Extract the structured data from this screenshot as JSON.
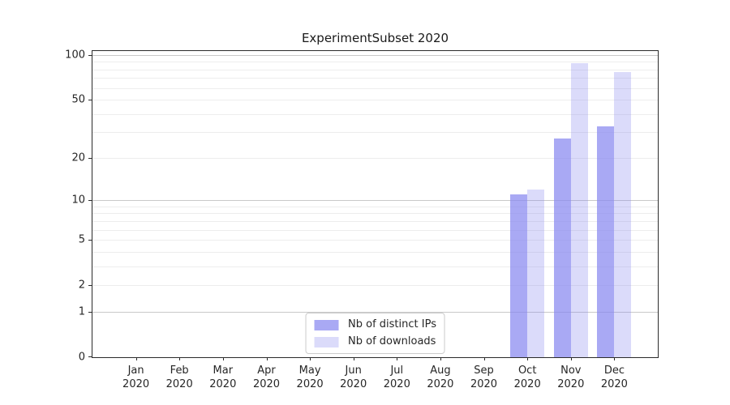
{
  "chart_data": {
    "type": "bar",
    "title": "ExperimentSubset 2020",
    "categories": [
      "Jan",
      "Feb",
      "Mar",
      "Apr",
      "May",
      "Jun",
      "Jul",
      "Aug",
      "Sep",
      "Oct",
      "Nov",
      "Dec"
    ],
    "year_label": "2020",
    "series": [
      {
        "name": "Nb of distinct IPs",
        "key": "distinct-ips",
        "color": "rgba(136,136,240,0.72)",
        "values": [
          0,
          0,
          0,
          0,
          0,
          0,
          0,
          0,
          0,
          11,
          27,
          33
        ]
      },
      {
        "name": "Nb of downloads",
        "key": "downloads",
        "color": "rgba(136,136,240,0.30)",
        "values": [
          0,
          0,
          0,
          0,
          0,
          0,
          0,
          0,
          0,
          12,
          88,
          77
        ]
      }
    ],
    "xlabel": "",
    "ylabel": "",
    "yscale": "log1p",
    "ylim": [
      0,
      106
    ],
    "yticks": [
      0,
      1,
      2,
      5,
      10,
      20,
      50,
      100
    ],
    "gridlines": {
      "major": [
        1,
        10,
        100
      ],
      "minor": [
        2,
        3,
        4,
        5,
        6,
        7,
        8,
        9,
        20,
        30,
        40,
        50,
        60,
        70,
        80,
        90
      ]
    },
    "grid": "horizontal",
    "legend_position": "lower center"
  },
  "colors": {
    "bar_base": "#8888f0",
    "grid_major": "#c9c9c9",
    "grid_minor": "#ededed",
    "axis": "#2b2b2b",
    "background": "#ffffff"
  }
}
